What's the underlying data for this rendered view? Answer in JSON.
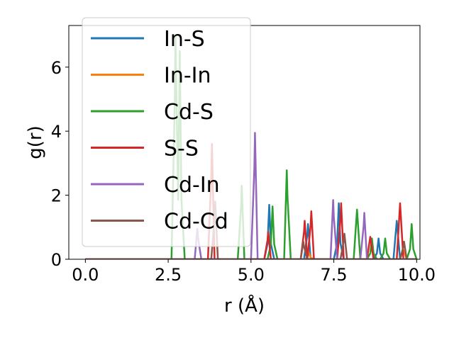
{
  "chart_data": {
    "type": "line",
    "xlabel": "r (Å)",
    "ylabel": "g(r)",
    "xlim": [
      -0.5,
      10.1
    ],
    "ylim": [
      0,
      7.3
    ],
    "x_ticks": [
      0.0,
      2.5,
      5.0,
      7.5,
      10.0
    ],
    "x_tick_labels": [
      "0.0",
      "2.5",
      "5.0",
      "7.5",
      "10.0"
    ],
    "y_ticks": [
      0,
      2,
      4,
      6
    ],
    "y_tick_labels": [
      "0",
      "2",
      "4",
      "6"
    ],
    "grid": false,
    "legend_position": "upper-left",
    "series": [
      {
        "name": "In-S",
        "color": "#1f77b4",
        "peaks": [
          [
            5.55,
            1.7
          ],
          [
            6.72,
            1.1
          ],
          [
            7.65,
            1.75
          ],
          [
            8.85,
            0.65
          ],
          [
            9.4,
            1.2
          ]
        ]
      },
      {
        "name": "In-In",
        "color": "#ff7f0e",
        "peaks": [
          [
            6.75,
            0.2
          ],
          [
            9.6,
            0.3
          ]
        ]
      },
      {
        "name": "Cd-S",
        "color": "#2ca02c",
        "peaks": [
          [
            2.72,
            7.0
          ],
          [
            2.85,
            6.5
          ],
          [
            4.72,
            2.3
          ],
          [
            5.65,
            1.65
          ],
          [
            6.08,
            2.78
          ],
          [
            8.2,
            1.55
          ],
          [
            8.65,
            0.65
          ],
          [
            9.05,
            0.65
          ],
          [
            9.85,
            1.1
          ]
        ]
      },
      {
        "name": "S-S",
        "color": "#d62728",
        "peaks": [
          [
            3.82,
            3.6
          ],
          [
            5.52,
            0.85
          ],
          [
            6.62,
            1.2
          ],
          [
            6.82,
            1.5
          ],
          [
            7.72,
            1.75
          ],
          [
            8.6,
            0.7
          ],
          [
            9.5,
            1.75
          ]
        ]
      },
      {
        "name": "Cd-In",
        "color": "#9467bd",
        "peaks": [
          [
            3.38,
            0.95
          ],
          [
            5.12,
            3.95
          ],
          [
            7.48,
            1.85
          ],
          [
            8.42,
            1.45
          ]
        ]
      },
      {
        "name": "Cd-Cd",
        "color": "#8c564b",
        "peaks": [
          [
            3.92,
            1.8
          ],
          [
            6.58,
            0.55
          ],
          [
            7.82,
            0.8
          ],
          [
            9.62,
            0.55
          ]
        ]
      }
    ]
  }
}
